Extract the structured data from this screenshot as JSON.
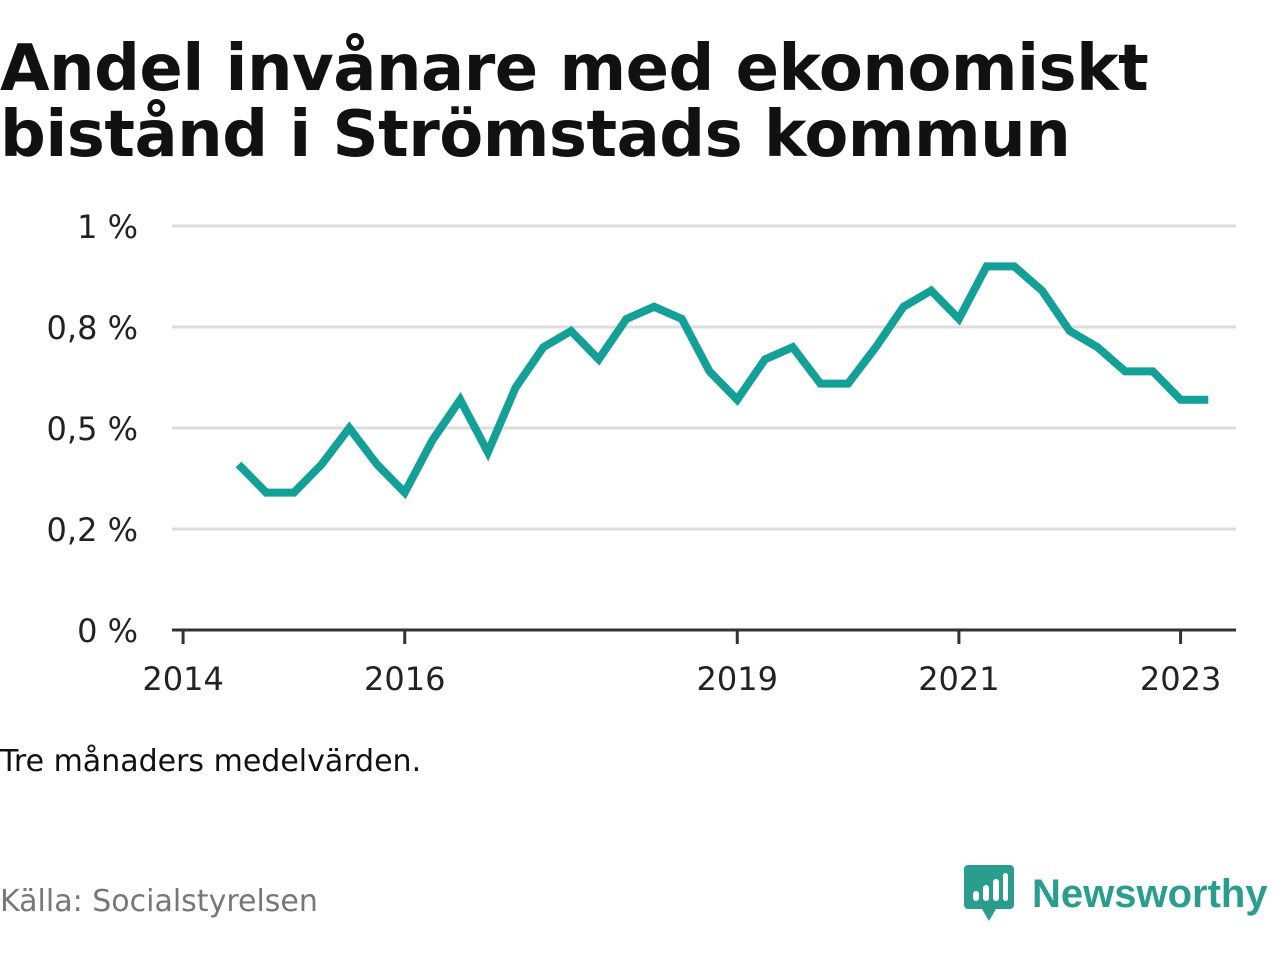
{
  "title_lines": [
    "Andel invånare med ekonomiskt",
    "bistånd i Strömstads kommun"
  ],
  "note": "Tre månaders medelvärden.",
  "source": "Källa: Socialstyrelsen",
  "brand": {
    "name": "Newsworthy",
    "icon": "bar-chart-speech-bubble-icon",
    "color": "#2a9d8f"
  },
  "chart_data": {
    "type": "line",
    "title": "Andel invånare med ekonomiskt bistånd i Strömstads kommun",
    "xlabel": "",
    "ylabel": "",
    "x_unit": "year",
    "x": [
      2014.5,
      2014.75,
      2015.0,
      2015.25,
      2015.5,
      2015.75,
      2016.0,
      2016.25,
      2016.5,
      2016.75,
      2017.0,
      2017.25,
      2017.5,
      2017.75,
      2018.0,
      2018.25,
      2018.5,
      2018.75,
      2019.0,
      2019.25,
      2019.5,
      2019.75,
      2020.0,
      2020.25,
      2020.5,
      2020.75,
      2021.0,
      2021.25,
      2021.5,
      2021.75,
      2022.0,
      2022.25,
      2022.5,
      2022.75,
      2023.0,
      2023.25
    ],
    "series": [
      {
        "name": "",
        "color": "#13a096",
        "values": [
          0.41,
          0.34,
          0.34,
          0.41,
          0.5,
          0.41,
          0.34,
          0.47,
          0.57,
          0.44,
          0.6,
          0.7,
          0.74,
          0.67,
          0.77,
          0.8,
          0.77,
          0.64,
          0.57,
          0.67,
          0.7,
          0.61,
          0.61,
          0.7,
          0.8,
          0.84,
          0.77,
          0.9,
          0.9,
          0.84,
          0.74,
          0.7,
          0.64,
          0.64,
          0.57,
          0.57
        ]
      }
    ],
    "y_ticks": [
      0,
      0.25,
      0.5,
      0.75,
      1
    ],
    "y_tick_labels": [
      "0 %",
      "0,2 %",
      "0,5 %",
      "0,8 %",
      "1 %"
    ],
    "x_ticks": [
      2014,
      2016,
      2019,
      2021,
      2023
    ],
    "x_tick_labels": [
      "2014",
      "2016",
      "2019",
      "2021",
      "2023"
    ],
    "xlim": [
      2013.9,
      2023.5
    ],
    "ylim": [
      0,
      1
    ],
    "grid": true,
    "legend": "none"
  }
}
